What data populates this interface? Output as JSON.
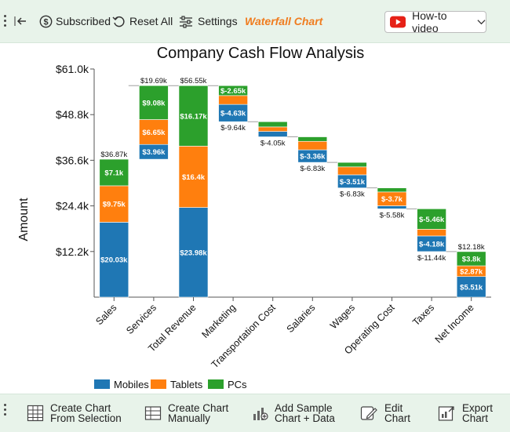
{
  "toolbar": {
    "subscribed_label": "Subscribed",
    "reset_label": "Reset All",
    "settings_label": "Settings",
    "chart_type_label": "Waterfall Chart",
    "howto_label": "How-to video"
  },
  "bottom_toolbar": {
    "create_from_selection": [
      "Create Chart",
      "From Selection"
    ],
    "create_manually": [
      "Create Chart",
      "Manually"
    ],
    "add_sample": [
      "Add Sample",
      "Chart + Data"
    ],
    "edit_chart": [
      "Edit",
      "Chart"
    ],
    "export_chart": [
      "Export",
      "Chart"
    ]
  },
  "colors": {
    "mobiles": "#1f77b4",
    "tablets": "#ff7f0e",
    "pcs": "#2ca02c",
    "accent": "#f07c1f",
    "toolbar_bg": "#e8f3ea"
  },
  "chart_data": {
    "type": "bar",
    "subtype": "stacked-waterfall",
    "title": "Company Cash Flow Analysis",
    "xlabel": "",
    "ylabel": "Amount",
    "ylim": [
      0,
      61000
    ],
    "y_ticks": [
      "$12.2k",
      "$24.4k",
      "$36.6k",
      "$48.8k",
      "$61.0k"
    ],
    "y_tick_values": [
      12200,
      24400,
      36600,
      48800,
      61000
    ],
    "legend": [
      "Mobiles",
      "Tablets",
      "PCs"
    ],
    "legend_position": "bottom",
    "categories": [
      {
        "name": "Sales",
        "base": 0,
        "segments": [
          20030,
          9750,
          7100
        ],
        "labels": [
          "$20.03k",
          "$9.75k",
          "$7.1k"
        ],
        "total_label": "$36.87k",
        "total_pos": "top"
      },
      {
        "name": "Services",
        "base": 36870,
        "segments": [
          3960,
          6650,
          9080
        ],
        "labels": [
          "$3.96k",
          "$6.65k",
          "$9.08k"
        ],
        "total_label": "$19.69k",
        "total_pos": "top"
      },
      {
        "name": "Total Revenue",
        "base": 0,
        "segments": [
          23980,
          16400,
          16170
        ],
        "labels": [
          "$23.98k",
          "$16.4k",
          "$16.17k"
        ],
        "total_label": "$56.55k",
        "total_pos": "top"
      },
      {
        "name": "Marketing",
        "base": 46910,
        "segments": [
          4630,
          2360,
          2650
        ],
        "labels": [
          "$-4.63k",
          "",
          "$-2.65k"
        ],
        "total_label": "$-9.64k",
        "total_pos": "bottom"
      },
      {
        "name": "Transportation Cost",
        "base": 42860,
        "segments": [
          1450,
          1200,
          1400
        ],
        "labels": [
          "",
          "",
          ""
        ],
        "total_label": "$-4.05k",
        "total_pos": "bottom"
      },
      {
        "name": "Salaries",
        "base": 36030,
        "segments": [
          3360,
          2270,
          1200
        ],
        "labels": [
          "$-3.36k",
          "",
          ""
        ],
        "total_label": "$-6.83k",
        "total_pos": "bottom"
      },
      {
        "name": "Wages",
        "base": 29200,
        "segments": [
          3510,
          2120,
          1200
        ],
        "labels": [
          "$-3.51k",
          "",
          ""
        ],
        "total_label": "$-6.83k",
        "total_pos": "bottom"
      },
      {
        "name": "Operating Cost",
        "base": 23620,
        "segments": [
          800,
          3700,
          1080
        ],
        "labels": [
          "",
          "$-3.7k",
          ""
        ],
        "total_label": "$-5.58k",
        "total_pos": "bottom"
      },
      {
        "name": "Taxes",
        "base": 12180,
        "segments": [
          4180,
          1800,
          5460
        ],
        "labels": [
          "$-4.18k",
          "",
          "$-5.46k"
        ],
        "total_label": "$-11.44k",
        "total_pos": "bottom"
      },
      {
        "name": "Net Income",
        "base": 0,
        "segments": [
          5510,
          2870,
          3800
        ],
        "labels": [
          "$5.51k",
          "$2.87k",
          "$3.8k"
        ],
        "total_label": "$12.18k",
        "total_pos": "top"
      }
    ]
  }
}
